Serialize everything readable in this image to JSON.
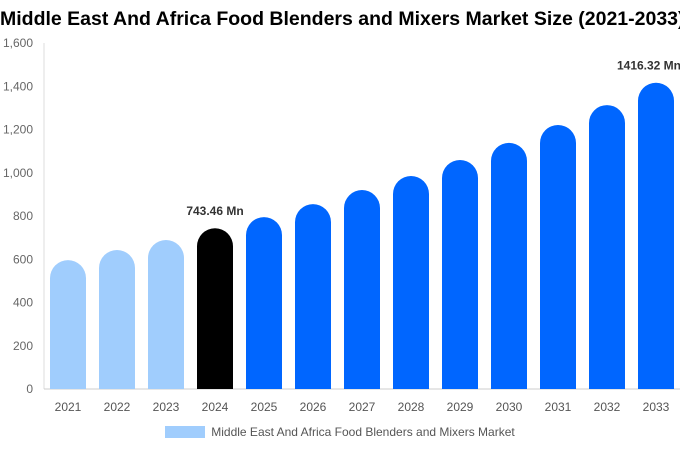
{
  "chart_data": {
    "type": "bar",
    "title": "Middle East And Africa Food Blenders and Mixers Market Size (2021-2033)",
    "categories": [
      "2021",
      "2022",
      "2023",
      "2024",
      "2025",
      "2026",
      "2027",
      "2028",
      "2029",
      "2030",
      "2031",
      "2032",
      "2033"
    ],
    "series": [
      {
        "name": "Middle East And Africa Food Blenders and Mixers Market",
        "values": [
          596,
          643,
          689,
          743.46,
          795,
          855,
          920,
          985,
          1059,
          1138,
          1221,
          1313,
          1416.32
        ]
      }
    ],
    "bar_colors": [
      "#a0cdfd",
      "#a0cdfd",
      "#a0cdfd",
      "#000000",
      "#0066ff",
      "#0066ff",
      "#0066ff",
      "#0066ff",
      "#0066ff",
      "#0066ff",
      "#0066ff",
      "#0066ff",
      "#0066ff"
    ],
    "data_labels": [
      {
        "index": 3,
        "text": "743.46 Mn"
      },
      {
        "index": 12,
        "text": "1416.32 Mn"
      }
    ],
    "ylim": [
      0,
      1600
    ],
    "yticks": [
      "0",
      "200",
      "400",
      "600",
      "800",
      "1,000",
      "1,200",
      "1,400",
      "1,600"
    ],
    "grid": false,
    "legend_position": "bottom",
    "xlabel": "",
    "ylabel": ""
  }
}
